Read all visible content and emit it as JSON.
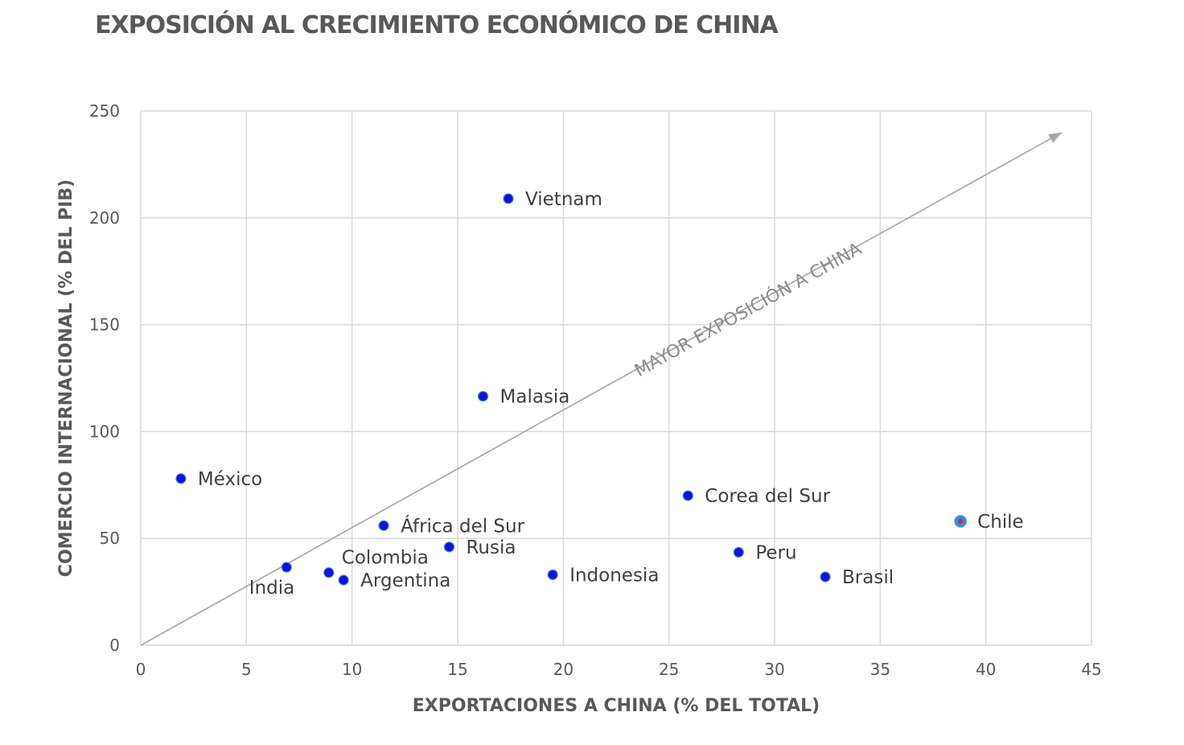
{
  "chart_data": {
    "type": "scatter",
    "title": "EXPOSICIÓN AL CRECIMIENTO ECONÓMICO DE CHINA",
    "xlabel": "EXPORTACIONES A CHINA (% DEL TOTAL)",
    "ylabel": "COMERCIO INTERNACIONAL (% DEL PIB)",
    "xlim": [
      0,
      45
    ],
    "ylim": [
      0,
      250
    ],
    "xticks": [
      0,
      5,
      10,
      15,
      20,
      25,
      30,
      35,
      40,
      45
    ],
    "yticks": [
      0,
      50,
      100,
      150,
      200,
      250
    ],
    "grid": true,
    "colors": {
      "point": "#0a14e0",
      "point_edge": "#5a7fd6",
      "highlight_fill": "#2f8ee0",
      "highlight_center": "#e0202a",
      "grid": "#d9d9d9",
      "arrow": "#a6a6a6",
      "text": "#595959"
    },
    "points": [
      {
        "label": "Vietnam",
        "x": 17.4,
        "y": 209,
        "label_pos": "right"
      },
      {
        "label": "Malasia",
        "x": 16.2,
        "y": 116.5,
        "label_pos": "right"
      },
      {
        "label": "México",
        "x": 1.9,
        "y": 78,
        "label_pos": "right"
      },
      {
        "label": "Corea del Sur",
        "x": 25.9,
        "y": 70,
        "label_pos": "right"
      },
      {
        "label": "Chile",
        "x": 38.8,
        "y": 58,
        "label_pos": "right",
        "highlight": true
      },
      {
        "label": "África del Sur",
        "x": 11.5,
        "y": 56,
        "label_pos": "right"
      },
      {
        "label": "Rusia",
        "x": 14.6,
        "y": 46,
        "label_pos": "right"
      },
      {
        "label": "Peru",
        "x": 28.3,
        "y": 43.5,
        "label_pos": "right"
      },
      {
        "label": "Colombia",
        "x": 8.9,
        "y": 34,
        "label_pos": "above-right"
      },
      {
        "label": "India",
        "x": 6.9,
        "y": 36.5,
        "label_pos": "below-left"
      },
      {
        "label": "Argentina",
        "x": 9.6,
        "y": 30.5,
        "label_pos": "right"
      },
      {
        "label": "Indonesia",
        "x": 19.5,
        "y": 33,
        "label_pos": "right"
      },
      {
        "label": "Brasil",
        "x": 32.4,
        "y": 32,
        "label_pos": "right"
      }
    ],
    "annotation": {
      "text": "MAYOR EXPOSICIÓN A CHINA",
      "arrow_from": [
        0,
        0
      ],
      "arrow_to": [
        43.6,
        240
      ]
    }
  }
}
